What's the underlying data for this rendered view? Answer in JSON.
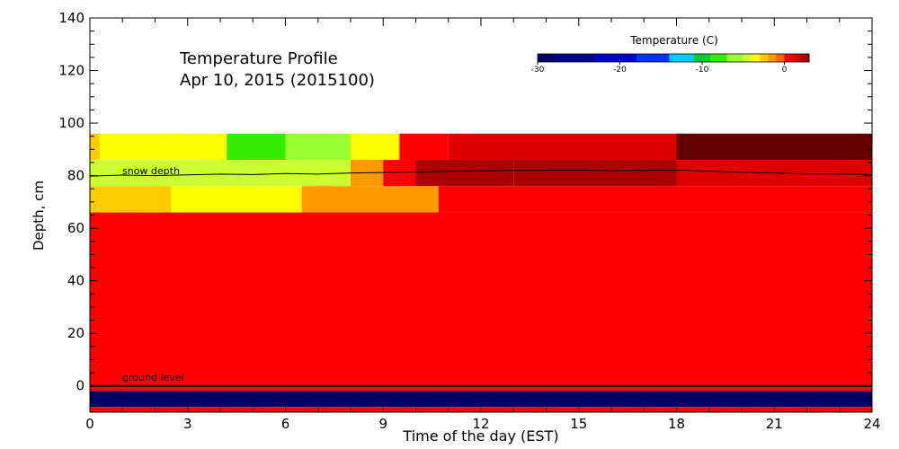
{
  "chart_data": {
    "type": "heatmap",
    "title": [
      "Temperature Profile",
      "Apr 10, 2015 (2015100)"
    ],
    "xlabel": "Time of the day (EST)",
    "ylabel": "Depth, cm",
    "xlim": [
      0,
      24
    ],
    "ylim": [
      -10,
      140
    ],
    "x_ticks": [
      0,
      3,
      6,
      9,
      12,
      15,
      18,
      21,
      24
    ],
    "y_ticks": [
      0,
      20,
      40,
      60,
      80,
      100,
      120,
      140
    ],
    "grid": false,
    "colorbar": {
      "label": "Temperature (C)",
      "range": [
        -30,
        3
      ],
      "ticks": [
        -30,
        -20,
        -10,
        0
      ],
      "tick_labels": [
        "-30",
        "-20",
        "-10",
        "0"
      ],
      "placement": "top-right"
    },
    "layers": [
      {
        "y_range": [
          86,
          96
        ],
        "segments": [
          {
            "x": [
              0,
              0.3
            ],
            "temp": -2.5
          },
          {
            "x": [
              0.3,
              2.6
            ],
            "temp": -4
          },
          {
            "x": [
              2.6,
              4.2
            ],
            "temp": -4
          },
          {
            "x": [
              4.2,
              6.0
            ],
            "temp": -7
          },
          {
            "x": [
              6.0,
              8.0
            ],
            "temp": -5.5
          },
          {
            "x": [
              8.0,
              9.5
            ],
            "temp": -4
          },
          {
            "x": [
              9.5,
              11.0
            ],
            "temp": 0
          },
          {
            "x": [
              11.0,
              18.0
            ],
            "temp": 1.5
          },
          {
            "x": [
              18.0,
              24.0
            ],
            "temp": 2.7
          }
        ]
      },
      {
        "y_range": [
          76,
          86
        ],
        "segments": [
          {
            "x": [
              0,
              8.0
            ],
            "temp": -5
          },
          {
            "x": [
              8.0,
              9.0
            ],
            "temp": -2
          },
          {
            "x": [
              9.0,
              10.0
            ],
            "temp": 0
          },
          {
            "x": [
              10.0,
              13.0
            ],
            "temp": 2.5
          },
          {
            "x": [
              13.0,
              18.0
            ],
            "temp": 2.2
          },
          {
            "x": [
              18.0,
              24.0
            ],
            "temp": 1
          }
        ]
      },
      {
        "y_range": [
          66,
          76
        ],
        "segments": [
          {
            "x": [
              0,
              2.5
            ],
            "temp": -2.5
          },
          {
            "x": [
              2.5,
              6.5
            ],
            "temp": -3.5
          },
          {
            "x": [
              6.5,
              10.7
            ],
            "temp": -1.5
          },
          {
            "x": [
              10.7,
              24.0
            ],
            "temp": 0
          }
        ]
      },
      {
        "y_range": [
          0,
          66
        ],
        "segments": [
          {
            "x": [
              0,
              24
            ],
            "temp": 0
          }
        ]
      },
      {
        "y_range": [
          -2,
          0
        ],
        "segments": [
          {
            "x": [
              0,
              24
            ],
            "temp": 0
          }
        ]
      },
      {
        "y_range": [
          -8,
          -2
        ],
        "segments": [
          {
            "x": [
              0,
              24
            ],
            "temp": -31
          }
        ]
      },
      {
        "y_range": [
          -10,
          -8
        ],
        "segments": [
          {
            "x": [
              0,
              24
            ],
            "temp": 0
          }
        ]
      }
    ],
    "snow_depth": {
      "label": "snow depth",
      "x": [
        0,
        1,
        2,
        3,
        4,
        5,
        6,
        7,
        8,
        9,
        10,
        11,
        12,
        13,
        14,
        15,
        16,
        17,
        18,
        19,
        20,
        21,
        22,
        23,
        24
      ],
      "y": [
        79.8,
        80.2,
        80.0,
        80.3,
        80.6,
        80.4,
        80.8,
        80.6,
        81.0,
        81.2,
        81.4,
        81.6,
        81.8,
        82.0,
        82.0,
        82.1,
        81.9,
        82.0,
        82.1,
        81.7,
        81.3,
        81.0,
        80.7,
        80.6,
        80.4
      ]
    },
    "ground_level": {
      "label": "ground level",
      "y": 0
    }
  }
}
